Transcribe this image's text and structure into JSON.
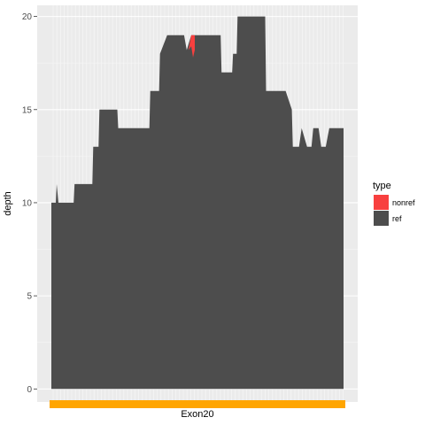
{
  "chart_data": {
    "type": "area",
    "ylabel": "depth",
    "xlabel": "",
    "ylim": [
      -0.7,
      20.6
    ],
    "y_ticks": [
      0,
      5,
      10,
      15,
      20
    ],
    "grid": true,
    "legend_placement": "right",
    "legend_title": "type",
    "track": {
      "label": "Exon20",
      "color": "#FFA500"
    },
    "colors": {
      "panel": "#EBEBEB",
      "grid": "#FFFFFF",
      "ref": "#4D4D4D",
      "nonref": "#F8403F"
    },
    "series": [
      {
        "name": "ref",
        "color": "#4D4D4D",
        "points": [
          [
            0,
            10
          ],
          [
            5,
            10
          ],
          [
            6,
            11
          ],
          [
            8,
            10
          ],
          [
            12,
            10
          ],
          [
            25,
            10
          ],
          [
            26,
            11
          ],
          [
            46,
            11
          ],
          [
            47,
            13
          ],
          [
            53,
            13
          ],
          [
            54,
            15
          ],
          [
            74,
            15
          ],
          [
            75,
            14
          ],
          [
            110,
            14
          ],
          [
            111,
            16
          ],
          [
            121,
            16
          ],
          [
            122,
            18
          ],
          [
            130,
            19
          ],
          [
            149,
            19
          ],
          [
            152,
            18.2
          ],
          [
            157,
            19
          ],
          [
            190,
            19
          ],
          [
            191,
            17
          ],
          [
            203,
            17
          ],
          [
            204,
            18
          ],
          [
            208,
            18
          ],
          [
            209,
            20
          ],
          [
            240,
            20
          ],
          [
            241,
            16
          ],
          [
            263,
            16
          ],
          [
            270,
            15
          ],
          [
            271,
            13
          ],
          [
            278,
            13
          ],
          [
            281,
            14
          ],
          [
            287,
            13
          ],
          [
            292,
            13
          ],
          [
            294,
            14
          ],
          [
            300,
            14
          ],
          [
            303,
            13
          ],
          [
            308,
            13
          ],
          [
            312,
            14
          ],
          [
            328,
            14
          ],
          [
            328,
            0
          ],
          [
            0,
            0
          ]
        ]
      },
      {
        "name": "nonref",
        "color": "#F8403F",
        "points": [
          [
            154,
            18.2
          ],
          [
            157,
            19
          ],
          [
            161,
            19
          ],
          [
            161,
            18.2
          ],
          [
            159,
            17.8
          ],
          [
            157,
            18.4
          ]
        ]
      }
    ]
  }
}
